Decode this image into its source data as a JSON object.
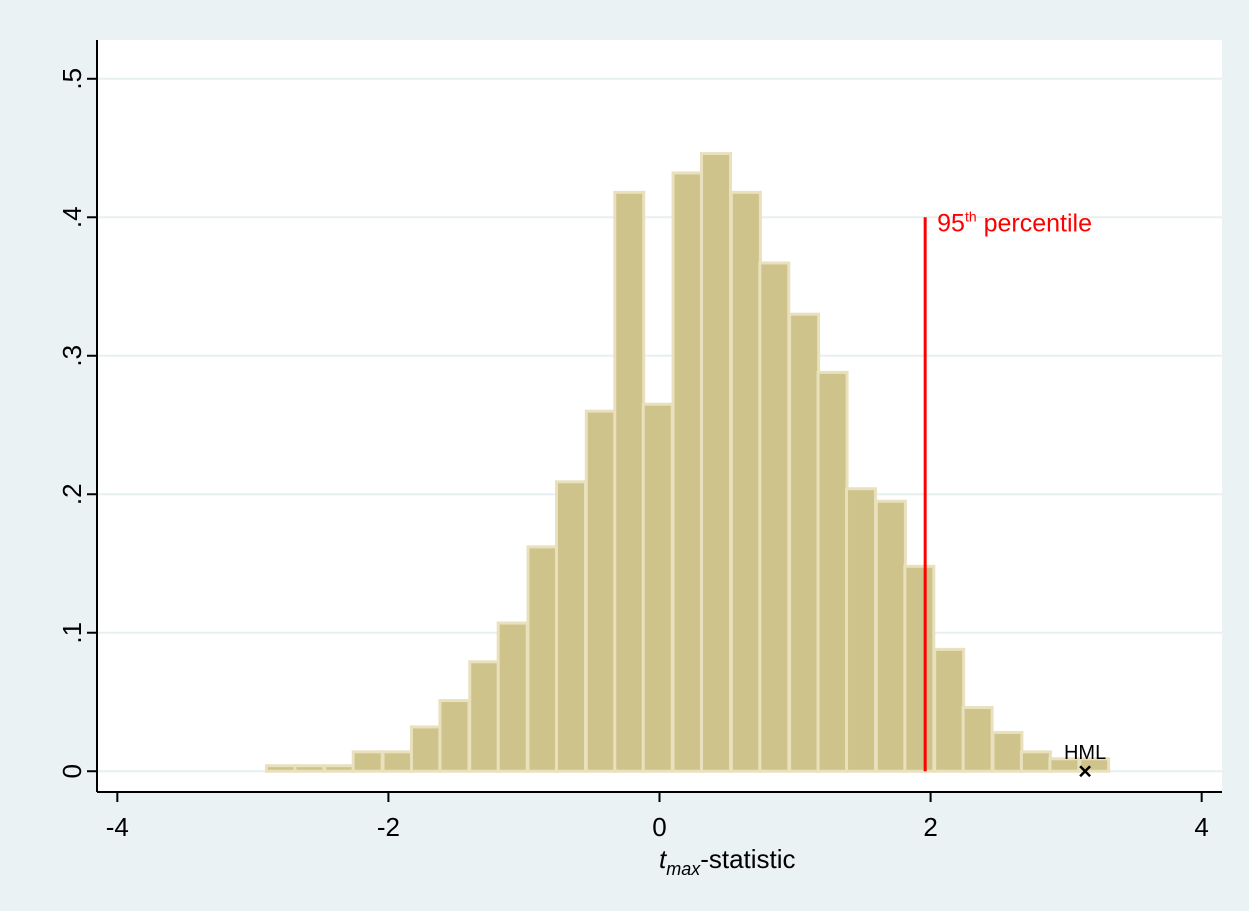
{
  "chart_data": {
    "type": "bar",
    "subtype": "histogram",
    "xlabel": {
      "base": "t",
      "subscript": "max",
      "rest": "-statistic"
    },
    "ylabel": "",
    "xlim": [
      -4,
      4
    ],
    "ylim": [
      0,
      0.5
    ],
    "x_ticks": [
      -4,
      -2,
      0,
      2,
      4
    ],
    "x_tick_labels": [
      "-4",
      "-2",
      "0",
      "2",
      "4"
    ],
    "y_ticks": [
      0,
      0.1,
      0.2,
      0.3,
      0.4,
      0.5
    ],
    "y_tick_labels": [
      "0",
      ".1",
      ".2",
      ".3",
      ".4",
      ".5"
    ],
    "grid": "horizontal",
    "bin_width": 0.214,
    "bins": {
      "x_start": [
        -2.9,
        -2.69,
        -2.47,
        -2.26,
        -2.04,
        -1.83,
        -1.62,
        -1.4,
        -1.19,
        -0.97,
        -0.76,
        -0.54,
        -0.33,
        -0.12,
        0.1,
        0.31,
        0.53,
        0.74,
        0.96,
        1.17,
        1.38,
        1.6,
        1.81,
        2.03,
        2.24,
        2.46,
        2.67,
        2.88,
        3.1
      ],
      "density": [
        0.004,
        0.004,
        0.004,
        0.014,
        0.014,
        0.032,
        0.051,
        0.079,
        0.107,
        0.162,
        0.209,
        0.26,
        0.418,
        0.265,
        0.432,
        0.446,
        0.418,
        0.367,
        0.33,
        0.288,
        0.204,
        0.195,
        0.148,
        0.088,
        0.046,
        0.028,
        0.014,
        0.009,
        0.009
      ]
    },
    "reference_line": {
      "x": 1.96,
      "y_top": 0.4,
      "color": "#ff0000",
      "label_base": "95",
      "label_superscript": "th",
      "label_rest": " percentile"
    },
    "marker": {
      "x": 3.14,
      "y": 0.0,
      "symbol": "x",
      "label": "HML"
    },
    "colors": {
      "bar_fill": "#cfc38c",
      "bar_stroke": "#e9e1bd",
      "outer_background": "#eaf2f3",
      "plot_background": "#ffffff",
      "grid": "#e8eff0",
      "reference_line": "#ff0000",
      "axis": "#000000"
    }
  }
}
